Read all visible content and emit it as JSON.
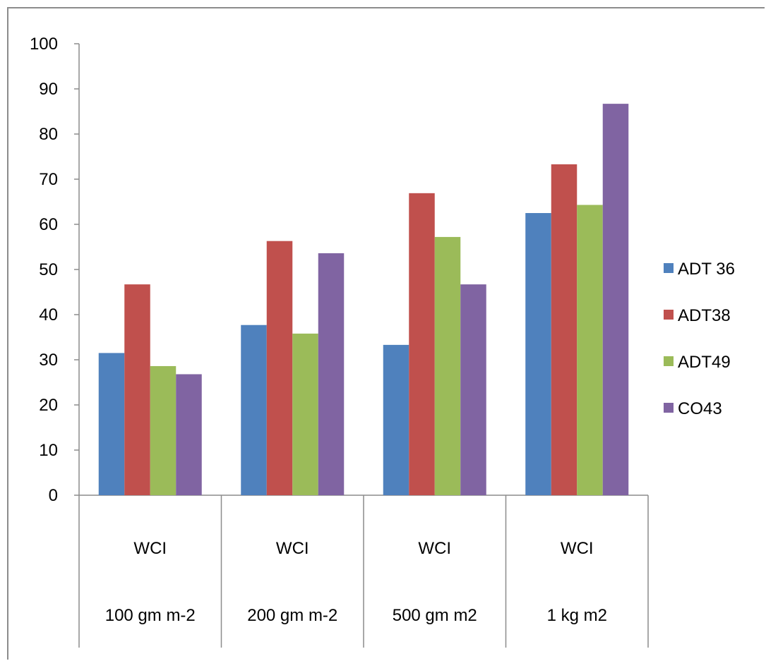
{
  "chart_data": {
    "type": "bar",
    "title": "",
    "xlabel": "",
    "ylabel": "",
    "ylim": [
      0,
      100
    ],
    "yticks": [
      0,
      10,
      20,
      30,
      40,
      50,
      60,
      70,
      80,
      90,
      100
    ],
    "categories": [
      {
        "top": "WCI",
        "bottom": "100 gm m-2"
      },
      {
        "top": "WCI",
        "bottom": "200 gm m-2"
      },
      {
        "top": "WCI",
        "bottom": "500 gm m2"
      },
      {
        "top": "WCI",
        "bottom": "1 kg m2"
      }
    ],
    "series": [
      {
        "name": "ADT 36",
        "color": "#4f81bd",
        "values": [
          31.5,
          37.7,
          33.3,
          62.5
        ]
      },
      {
        "name": "ADT38",
        "color": "#c0504d",
        "values": [
          46.7,
          56.3,
          66.9,
          73.3
        ]
      },
      {
        "name": "ADT49",
        "color": "#9bbb59",
        "values": [
          28.6,
          35.8,
          57.2,
          64.3
        ]
      },
      {
        "name": "CO43",
        "color": "#8064a2",
        "values": [
          26.8,
          53.6,
          46.7,
          86.7
        ]
      }
    ],
    "grid": false,
    "legend_position": "right"
  }
}
